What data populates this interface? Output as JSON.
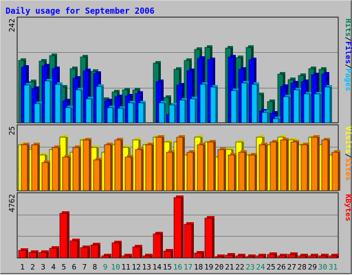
{
  "title": "Daily usage for September 2006",
  "colors": {
    "background": "#c0c0c0",
    "title": "#0000ff",
    "hits": "#00805c",
    "files": "#0000ff",
    "pages": "#00c0ff",
    "visits": "#ffff00",
    "sites": "#ff8000",
    "kbytes": "#ff0000",
    "grid": "#808080",
    "weekend_label": "#00805c",
    "weekday_label": "#000000"
  },
  "chart_data": [
    {
      "type": "bar",
      "panel": "top",
      "y_max_label": "242",
      "ylim": [
        0,
        242
      ],
      "legend": [
        {
          "text": "Hits",
          "color": "#00805c"
        },
        {
          "text": "/",
          "color": "#000000"
        },
        {
          "text": "Files",
          "color": "#0000ff"
        },
        {
          "text": "/",
          "color": "#000000"
        },
        {
          "text": "Pages",
          "color": "#00c0ff"
        }
      ],
      "categories": [
        "1",
        "2",
        "3",
        "4",
        "5",
        "6",
        "7",
        "8",
        "9",
        "10",
        "11",
        "12",
        "13",
        "14",
        "15",
        "16",
        "17",
        "18",
        "19",
        "20",
        "21",
        "22",
        "23",
        "24",
        "25",
        "26",
        "27",
        "28",
        "29",
        "30",
        "31"
      ],
      "series": [
        {
          "name": "Hits",
          "values": [
            151,
            102,
            150,
            163,
            89,
            133,
            159,
            126,
            59,
            77,
            82,
            83,
            0,
            145,
            65,
            131,
            152,
            178,
            182,
            0,
            181,
            158,
            183,
            71,
            55,
            119,
            106,
            116,
            132,
            130,
            0
          ]
        },
        {
          "name": "Files",
          "values": [
            135,
            85,
            139,
            132,
            57,
            109,
            128,
            121,
            57,
            66,
            67,
            74,
            0,
            101,
            25,
            94,
            128,
            156,
            153,
            0,
            160,
            130,
            154,
            33,
            28,
            91,
            98,
            101,
            118,
            119,
            0
          ]
        },
        {
          "name": "Pages",
          "values": [
            94,
            50,
            103,
            95,
            40,
            82,
            62,
            90,
            41,
            39,
            52,
            51,
            0,
            52,
            46,
            58,
            62,
            95,
            88,
            0,
            80,
            98,
            95,
            29,
            15,
            66,
            82,
            73,
            72,
            89,
            0
          ]
        }
      ]
    },
    {
      "type": "bar",
      "panel": "middle",
      "y_max_label": "25",
      "ylim": [
        0,
        25
      ],
      "legend": [
        {
          "text": "Visits",
          "color": "#ffff00"
        },
        {
          "text": "/",
          "color": "#000000"
        },
        {
          "text": "Sites",
          "color": "#ff8000"
        }
      ],
      "categories": [
        "1",
        "2",
        "3",
        "4",
        "5",
        "6",
        "7",
        "8",
        "9",
        "10",
        "11",
        "12",
        "13",
        "14",
        "15",
        "16",
        "17",
        "18",
        "19",
        "20",
        "21",
        "22",
        "23",
        "24",
        "25",
        "26",
        "27",
        "28",
        "29",
        "30",
        "31"
      ],
      "series": [
        {
          "name": "Visits",
          "values": [
            19,
            17,
            15,
            17,
            22,
            16,
            21,
            18,
            16,
            19,
            18,
            21,
            19,
            22,
            20,
            20,
            15,
            22,
            20,
            14,
            17,
            20,
            15,
            22,
            19,
            22,
            21,
            19,
            22,
            19,
            15
          ]
        },
        {
          "name": "Sites",
          "values": [
            19,
            19,
            12,
            18,
            14,
            18,
            21,
            13,
            19,
            21,
            14,
            17,
            19,
            22,
            16,
            22,
            16,
            19,
            20,
            17,
            15,
            16,
            15,
            19,
            20,
            21,
            20,
            19,
            22,
            21,
            16
          ]
        }
      ]
    },
    {
      "type": "bar",
      "panel": "bottom",
      "y_max_label": "4762",
      "ylim": [
        0,
        4762
      ],
      "legend": [
        {
          "text": "KBytes",
          "color": "#ff0000"
        }
      ],
      "categories": [
        "1",
        "2",
        "3",
        "4",
        "5",
        "6",
        "7",
        "8",
        "9",
        "10",
        "11",
        "12",
        "13",
        "14",
        "15",
        "16",
        "17",
        "18",
        "19",
        "20",
        "21",
        "22",
        "23",
        "24",
        "25",
        "26",
        "27",
        "28",
        "29",
        "30",
        "31"
      ],
      "series": [
        {
          "name": "KBytes",
          "values": [
            750,
            590,
            560,
            870,
            3560,
            1450,
            930,
            1140,
            320,
            1310,
            340,
            1020,
            330,
            2000,
            660,
            4740,
            2710,
            540,
            3210,
            260,
            390,
            320,
            240,
            320,
            430,
            340,
            400,
            290,
            340,
            330,
            330
          ]
        }
      ]
    }
  ]
}
